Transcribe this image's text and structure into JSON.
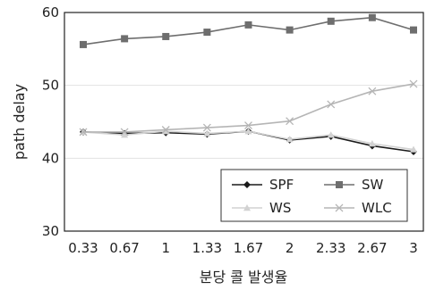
{
  "chart_data": {
    "type": "line",
    "title": "",
    "xlabel": "분당 콜 발생율",
    "ylabel": "path delay",
    "categories": [
      "0.33",
      "0.67",
      "1",
      "1.33",
      "1.67",
      "2",
      "2.33",
      "2.67",
      "3"
    ],
    "ylim": [
      30,
      60
    ],
    "yticks": [
      30,
      40,
      50,
      60
    ],
    "grid": "horizontal",
    "legend_position": "bottom-right",
    "series": [
      {
        "name": "SPF",
        "color": "#1a1a1a",
        "marker": "diamond",
        "values": [
          43.6,
          43.4,
          43.5,
          43.3,
          43.7,
          42.5,
          43.0,
          41.7,
          40.9
        ]
      },
      {
        "name": "SW",
        "color": "#6e6e6e",
        "marker": "square",
        "values": [
          55.6,
          56.4,
          56.7,
          57.3,
          58.3,
          57.6,
          58.8,
          59.3,
          57.6
        ]
      },
      {
        "name": "WS",
        "color": "#d2d2d2",
        "marker": "triangle",
        "values": [
          43.6,
          43.2,
          43.7,
          43.4,
          43.7,
          42.6,
          43.2,
          42.0,
          41.2
        ]
      },
      {
        "name": "WLC",
        "color": "#b5b5b5",
        "marker": "x",
        "values": [
          43.6,
          43.6,
          43.9,
          44.2,
          44.5,
          45.1,
          47.4,
          49.2,
          50.2
        ]
      }
    ]
  }
}
